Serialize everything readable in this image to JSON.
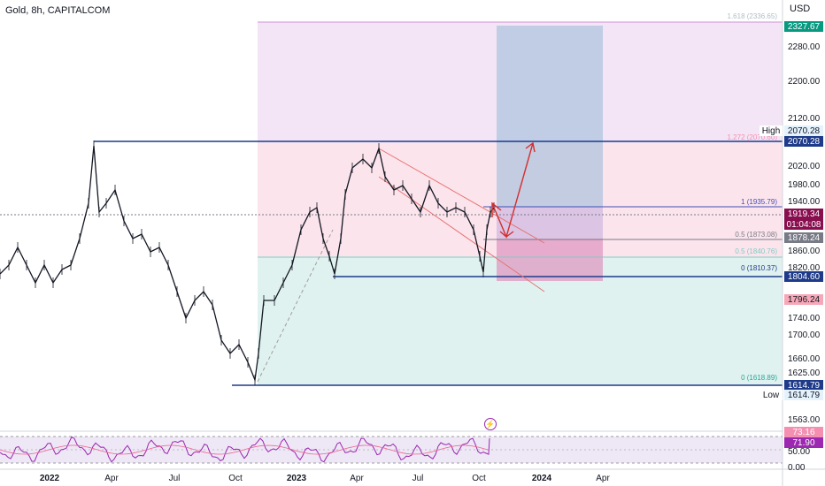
{
  "header": {
    "title": "Gold, 8h, CAPITALCOM",
    "currency": "USD"
  },
  "price_axis": {
    "ticks": [
      "2280.00",
      "2200.00",
      "2120.00",
      "2020.00",
      "1980.00",
      "1940.00",
      "1860.00",
      "1820.00",
      "1740.00",
      "1700.00",
      "1660.00",
      "1625.00",
      "1563.00"
    ],
    "tags": [
      {
        "label": "2327.67",
        "color": "#089981",
        "text": "#ffffff"
      },
      {
        "label": "High",
        "color": "#ffffff",
        "text": "#131722"
      },
      {
        "label": "2070.28",
        "color": "#e3f2fd",
        "text": "#131722"
      },
      {
        "label": "2070.28",
        "color": "#1e3a8a",
        "text": "#ffffff"
      },
      {
        "label": "1919.34",
        "color": "#880e4f",
        "text": "#ffffff"
      },
      {
        "label": "01:04:08",
        "color": "#880e4f",
        "text": "#ffffff"
      },
      {
        "label": "1878.24",
        "color": "#787b86",
        "text": "#ffffff"
      },
      {
        "label": "1804.60",
        "color": "#1e3a8a",
        "text": "#ffffff"
      },
      {
        "label": "1796.24",
        "color": "#f7a8b8",
        "text": "#131722"
      },
      {
        "label": "1614.79",
        "color": "#1e3a8a",
        "text": "#ffffff"
      },
      {
        "label": "Low",
        "color": "#ffffff",
        "text": "#131722"
      },
      {
        "label": "1614.79",
        "color": "#e3f2fd",
        "text": "#131722"
      }
    ]
  },
  "rsi_axis": {
    "tags": [
      {
        "label": "73.16",
        "color": "#f48fb1",
        "text": "#ffffff"
      },
      {
        "label": "71.90",
        "color": "#9c27b0",
        "text": "#ffffff"
      }
    ],
    "ticks": [
      "50.00",
      "0.00"
    ]
  },
  "time_axis": {
    "labels": [
      "2022",
      "Apr",
      "Jul",
      "Oct",
      "2023",
      "Apr",
      "Jul",
      "Oct",
      "2024",
      "Apr"
    ]
  },
  "fib_labels": {
    "f1618": "1.618 (2336.65)",
    "f1272": "1.272 (2070.60)",
    "f1": "1 (1935.79)",
    "f05": "0.5 (1873.08)",
    "f05b": "0.5 (1840.76)",
    "f0a": "0 (1810.37)",
    "f0b": "0 (1618.89)"
  },
  "colors": {
    "candle": "#131722",
    "fib_purple": "#f3e5f5",
    "fib_pink": "#fce4ec",
    "fib_green": "#e0f2ef",
    "position_blue": "#b0c4de",
    "level_line": "#1e3a8a",
    "channel": "#e57373",
    "arrow": "#d32f2f",
    "rsi_line": "#9c27b0",
    "rsi_band": "#ede7f6"
  }
}
